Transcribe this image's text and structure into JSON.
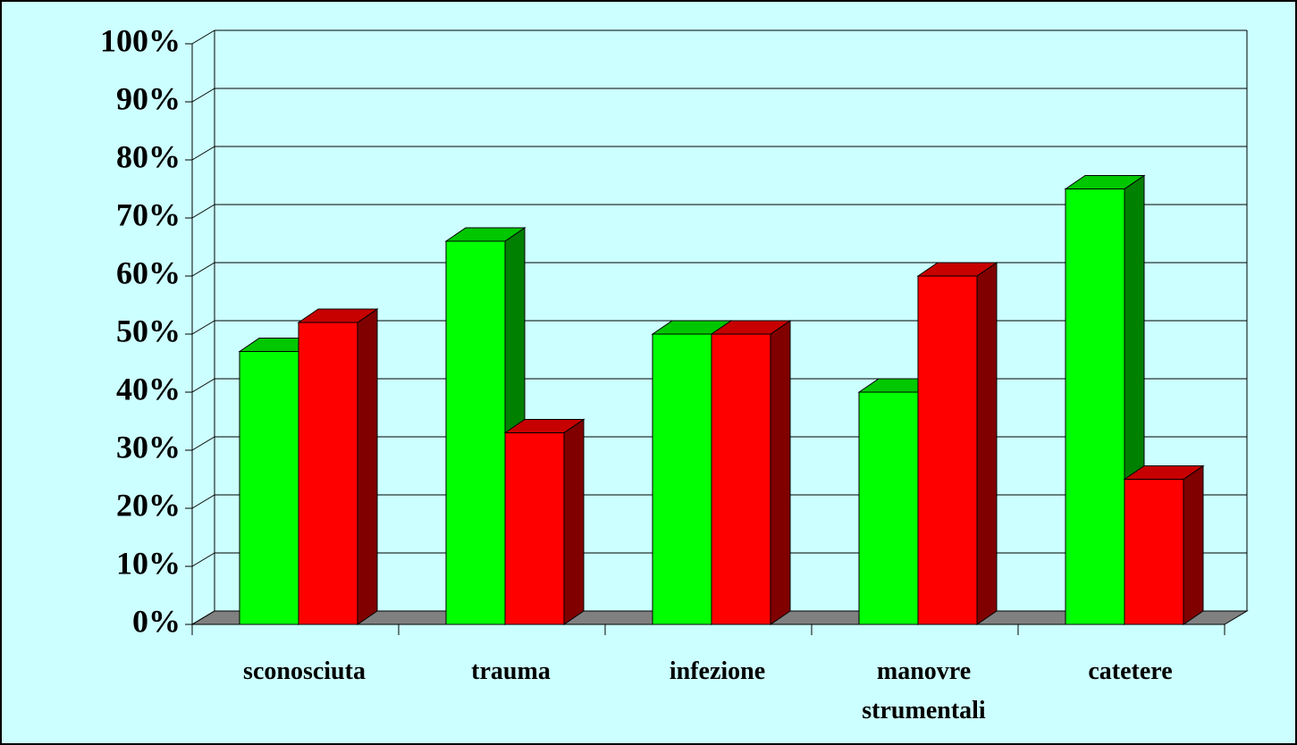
{
  "chart_data": {
    "type": "bar3d",
    "categories": [
      "sconosciuta",
      "trauma",
      "infezione",
      "manovre strumentali",
      "catetere"
    ],
    "series": [
      {
        "color": "#00ff00",
        "values": [
          47,
          66,
          50,
          40,
          75
        ]
      },
      {
        "color": "#ff0000",
        "values": [
          52,
          33,
          50,
          60,
          25
        ]
      }
    ],
    "ylim": [
      0,
      100
    ],
    "yticks": [
      {
        "value": 0,
        "label": "0%"
      },
      {
        "value": 10,
        "label": "10%"
      },
      {
        "value": 20,
        "label": "20%"
      },
      {
        "value": 30,
        "label": "30%"
      },
      {
        "value": 40,
        "label": "40%"
      },
      {
        "value": 50,
        "label": "50%"
      },
      {
        "value": 60,
        "label": "60%"
      },
      {
        "value": 70,
        "label": "70%"
      },
      {
        "value": 80,
        "label": "80%"
      },
      {
        "value": 90,
        "label": "90%"
      },
      {
        "value": 100,
        "label": "100%"
      }
    ],
    "grid": true
  }
}
